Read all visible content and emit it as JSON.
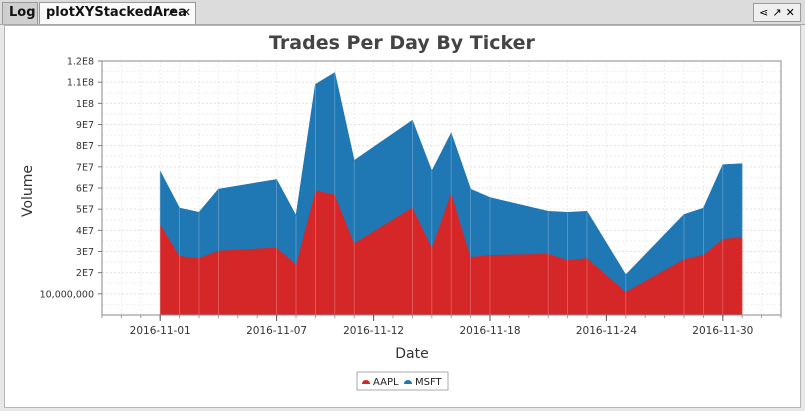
{
  "tabs": [
    {
      "label": "Log",
      "active": false
    },
    {
      "label": "plotXYStackedArea",
      "active": true
    }
  ],
  "tab_icons": {
    "popout": "↗",
    "close": "✕"
  },
  "window_icons": {
    "share": "⋖",
    "popout": "↗",
    "close": "✕"
  },
  "chart_data": {
    "type": "area",
    "stacked": true,
    "title": "Trades Per Day By Ticker",
    "xlabel": "Date",
    "ylabel": "Volume",
    "x": [
      "2016-11-01",
      "2016-11-02",
      "2016-11-03",
      "2016-11-04",
      "2016-11-07",
      "2016-11-08",
      "2016-11-09",
      "2016-11-10",
      "2016-11-11",
      "2016-11-14",
      "2016-11-15",
      "2016-11-16",
      "2016-11-17",
      "2016-11-18",
      "2016-11-21",
      "2016-11-22",
      "2016-11-23",
      "2016-11-25",
      "2016-11-28",
      "2016-11-29",
      "2016-11-30",
      "2016-12-01"
    ],
    "series": [
      {
        "name": "AAPL",
        "color": "#d62728",
        "values": [
          43000000,
          28000000,
          27000000,
          30500000,
          32000000,
          24000000,
          59000000,
          57000000,
          34000000,
          51000000,
          32000000,
          58000000,
          27500000,
          28500000,
          29000000,
          26000000,
          27000000,
          11000000,
          26500000,
          28500000,
          36000000,
          37000000
        ]
      },
      {
        "name": "MSFT",
        "color": "#1f77b4",
        "values": [
          25000000,
          22500000,
          21500000,
          29000000,
          32000000,
          23000000,
          50000000,
          57500000,
          39000000,
          41000000,
          36000000,
          28000000,
          32000000,
          27000000,
          20000000,
          22500000,
          22000000,
          8000000,
          21000000,
          22000000,
          35000000,
          34500000
        ]
      }
    ],
    "y_ticks": [
      {
        "value": 10000000,
        "label": "10,000,000"
      },
      {
        "value": 20000000,
        "label": "2E7"
      },
      {
        "value": 30000000,
        "label": "3E7"
      },
      {
        "value": 40000000,
        "label": "4E7"
      },
      {
        "value": 50000000,
        "label": "5E7"
      },
      {
        "value": 60000000,
        "label": "6E7"
      },
      {
        "value": 70000000,
        "label": "7E7"
      },
      {
        "value": 80000000,
        "label": "8E7"
      },
      {
        "value": 90000000,
        "label": "9E7"
      },
      {
        "value": 100000000,
        "label": "1E8"
      },
      {
        "value": 110000000,
        "label": "1.1E8"
      },
      {
        "value": 120000000,
        "label": "1.2E8"
      }
    ],
    "x_ticks": [
      "2016-11-01",
      "2016-11-07",
      "2016-11-12",
      "2016-11-18",
      "2016-11-24",
      "2016-11-30"
    ],
    "ylim": [
      0,
      120000000
    ],
    "xlim": [
      "2016-10-29",
      "2016-12-03"
    ],
    "grid": true,
    "legend": "bottom-center"
  }
}
